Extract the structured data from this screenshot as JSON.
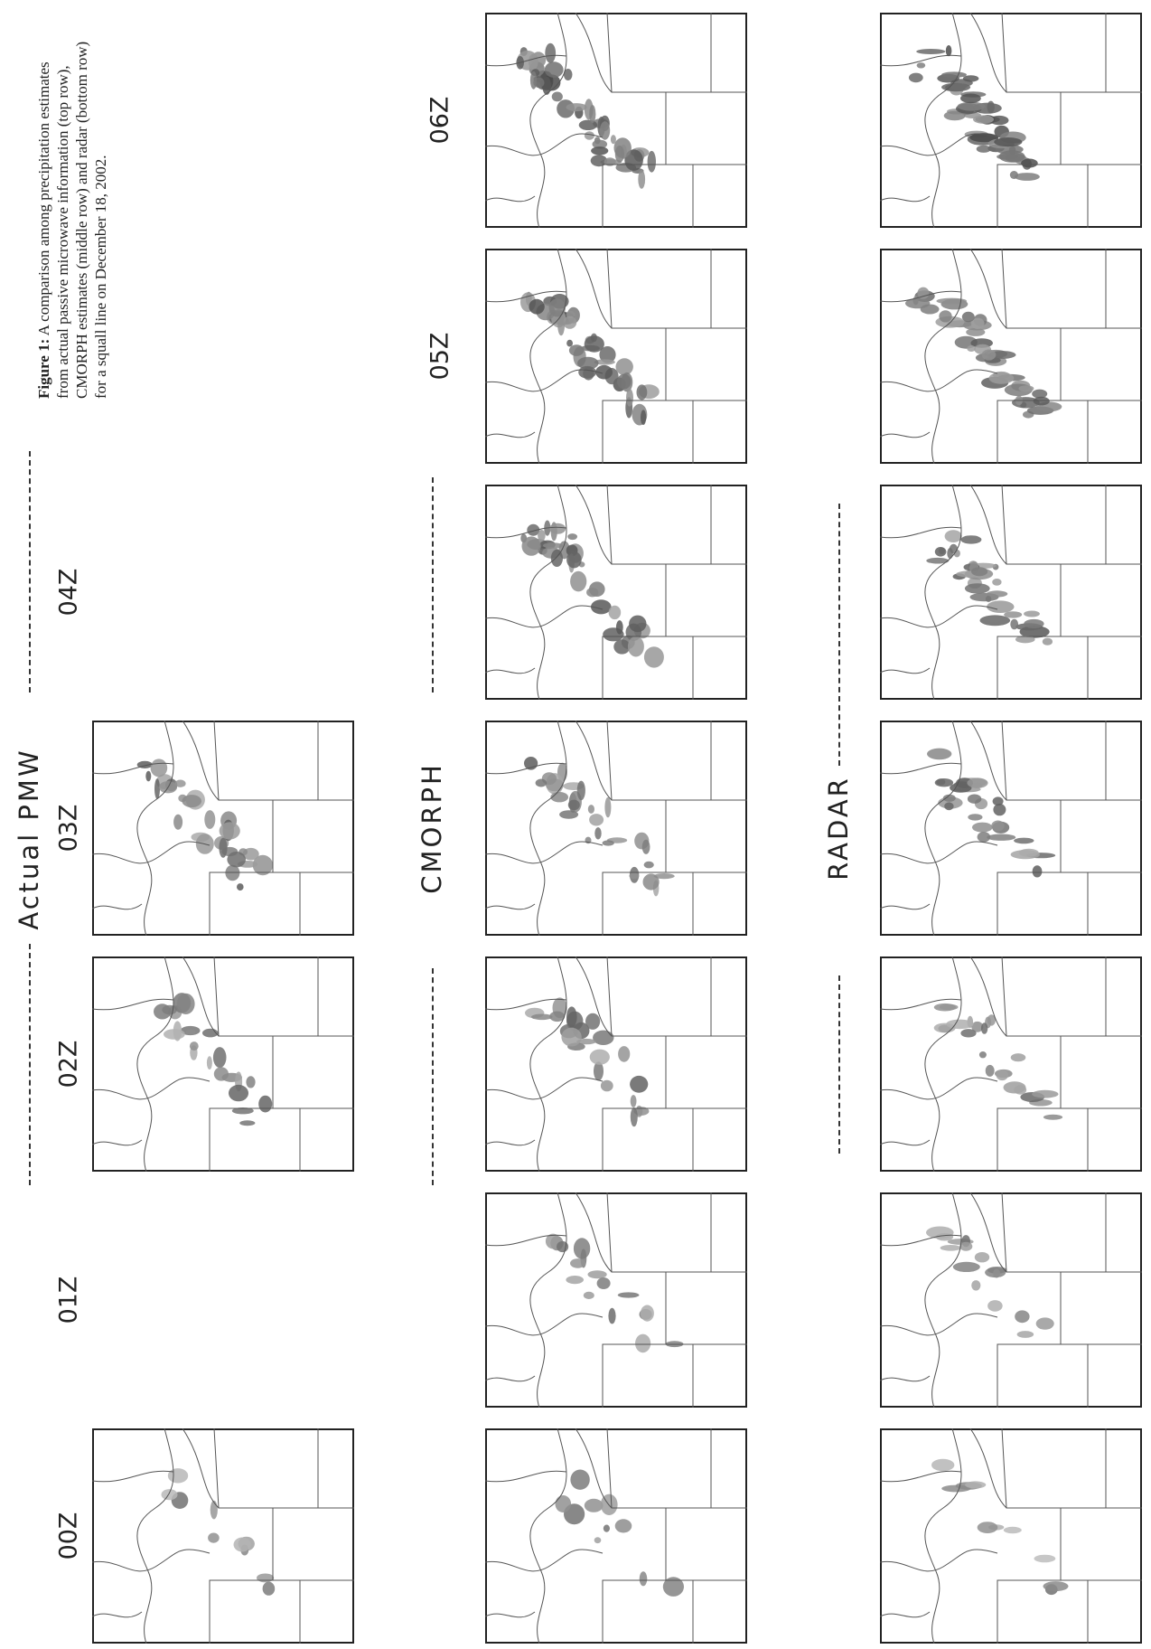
{
  "figure": {
    "row_labels": [
      "Actual PMW",
      "CMORPH",
      "RADAR"
    ],
    "time_labels": [
      "00Z",
      "01Z",
      "02Z",
      "03Z",
      "04Z",
      "05Z",
      "06Z"
    ],
    "caption": {
      "label": "Figure 1:",
      "text": "A comparison among precipitation estimates from actual passive microwave information (top row), CMORPH estimates (middle row) and radar (bottom row) for a squall line on December 18, 2002."
    }
  }
}
